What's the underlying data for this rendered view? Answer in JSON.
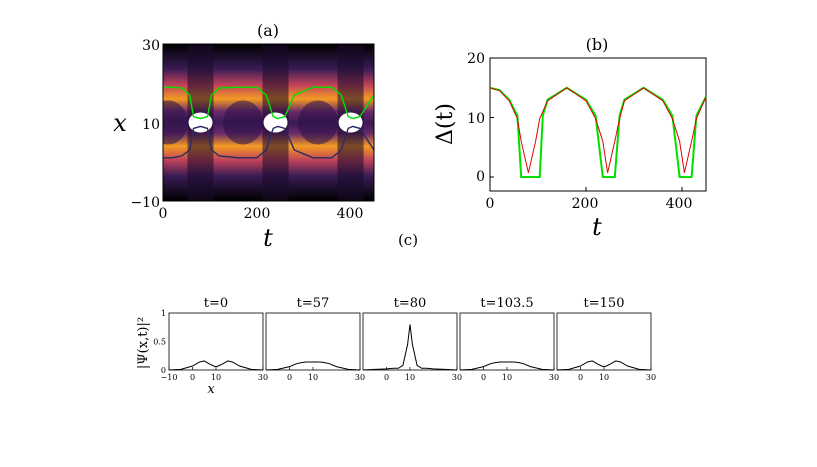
{
  "panel_a": {
    "label": "(a)",
    "xlabel": "t",
    "ylabel": "x",
    "x_ticks": [
      "0",
      "200",
      "400"
    ],
    "y_ticks": [
      "30",
      "10",
      "−10"
    ]
  },
  "panel_b": {
    "label": "(b)",
    "xlabel": "t",
    "ylabel": "Δ(t)",
    "x_ticks": [
      "0",
      "200",
      "400"
    ],
    "y_ticks": [
      "20",
      "10",
      "0"
    ]
  },
  "panel_c": {
    "label": "(c)",
    "ylabel": "|Ψ(x,t)|²",
    "xlabel": "x",
    "titles": [
      "t=0",
      "t=57",
      "t=80",
      "t=103.5",
      "t=150"
    ],
    "y_ticks": [
      "1",
      "0.5",
      "0"
    ],
    "x_ticks_first": [
      "−10",
      "0",
      "10",
      "30"
    ],
    "x_ticks_other": [
      "0",
      "10",
      "30"
    ]
  },
  "colors": {
    "density_high": "#fff3c4",
    "density_mid": "#f28a1a",
    "density_low": "#3b1a55",
    "green": "#00e000",
    "red": "#e00000",
    "navy": "#2a2a66"
  },
  "chart_data": [
    {
      "type": "heatmap",
      "panel": "a",
      "description_of_axes": "density |Psi(x,t)|^2 over time t and position x",
      "xlim": [
        0,
        450
      ],
      "ylim": [
        -10,
        30
      ],
      "x": [
        0,
        20,
        40,
        57,
        65,
        80,
        95,
        103.5,
        120,
        160,
        200,
        220,
        235,
        245,
        260,
        280,
        320,
        360,
        380,
        395,
        405,
        420,
        450
      ],
      "series": [
        {
          "name": "upper",
          "color": "green",
          "values": [
            19,
            19,
            18.8,
            17,
            11.5,
            11,
            11.5,
            17,
            18.8,
            19,
            19,
            17,
            11.5,
            11,
            11.5,
            17,
            19,
            19,
            17,
            11.5,
            11,
            11.5,
            17
          ]
        },
        {
          "name": "lower",
          "color": "navy",
          "values": [
            1,
            1,
            1.5,
            3,
            8.5,
            9,
            8.5,
            3,
            1.5,
            1,
            1,
            3,
            8.5,
            9,
            8.5,
            3,
            1,
            1,
            3,
            8.5,
            9,
            8.5,
            3
          ]
        }
      ]
    },
    {
      "type": "line",
      "panel": "b",
      "xlim": [
        0,
        450
      ],
      "ylim": [
        0,
        20
      ],
      "x": [
        0,
        20,
        40,
        57,
        65,
        80,
        95,
        103.5,
        110,
        120,
        160,
        200,
        220,
        235,
        245,
        260,
        270,
        280,
        320,
        360,
        380,
        395,
        405,
        420,
        430,
        450
      ],
      "series": [
        {
          "name": "green",
          "color": "green",
          "values": [
            15,
            14.6,
            13,
            10.3,
            0,
            0,
            0,
            0,
            10.3,
            13,
            15,
            13,
            10.3,
            0,
            0,
            0,
            10.3,
            13,
            15,
            13,
            10.3,
            0,
            0,
            0,
            10.3,
            13.5
          ]
        },
        {
          "name": "red",
          "color": "red",
          "values": [
            15,
            14.5,
            12.8,
            9.8,
            6,
            0.7,
            6,
            9.8,
            11,
            12.8,
            15,
            12.8,
            9.8,
            6,
            0.7,
            6,
            9.8,
            12.8,
            15,
            12.8,
            9.8,
            6,
            0.7,
            6,
            9.8,
            13.5
          ]
        }
      ]
    },
    {
      "type": "line",
      "panel": "c",
      "xlim": [
        -10,
        30
      ],
      "ylim": [
        0,
        1
      ],
      "x": [
        -10,
        -5,
        0,
        3,
        5,
        7,
        9,
        10,
        11,
        13,
        15,
        17,
        20,
        25,
        30
      ],
      "series": [
        {
          "name": "t=0",
          "values": [
            0,
            0.01,
            0.07,
            0.14,
            0.16,
            0.11,
            0.07,
            0.06,
            0.07,
            0.11,
            0.16,
            0.14,
            0.07,
            0.01,
            0
          ]
        },
        {
          "name": "t=57",
          "values": [
            0,
            0.01,
            0.06,
            0.11,
            0.13,
            0.14,
            0.14,
            0.14,
            0.14,
            0.14,
            0.13,
            0.11,
            0.06,
            0.01,
            0
          ]
        },
        {
          "name": "t=80",
          "values": [
            0,
            0.01,
            0.02,
            0.03,
            0.03,
            0.08,
            0.45,
            0.8,
            0.45,
            0.08,
            0.03,
            0.03,
            0.02,
            0.01,
            0
          ]
        },
        {
          "name": "t=103.5",
          "values": [
            0,
            0.01,
            0.06,
            0.11,
            0.13,
            0.14,
            0.14,
            0.14,
            0.14,
            0.14,
            0.13,
            0.11,
            0.06,
            0.01,
            0
          ]
        },
        {
          "name": "t=150",
          "values": [
            0,
            0.01,
            0.07,
            0.14,
            0.16,
            0.11,
            0.07,
            0.06,
            0.07,
            0.11,
            0.16,
            0.14,
            0.07,
            0.01,
            0
          ]
        }
      ]
    }
  ]
}
